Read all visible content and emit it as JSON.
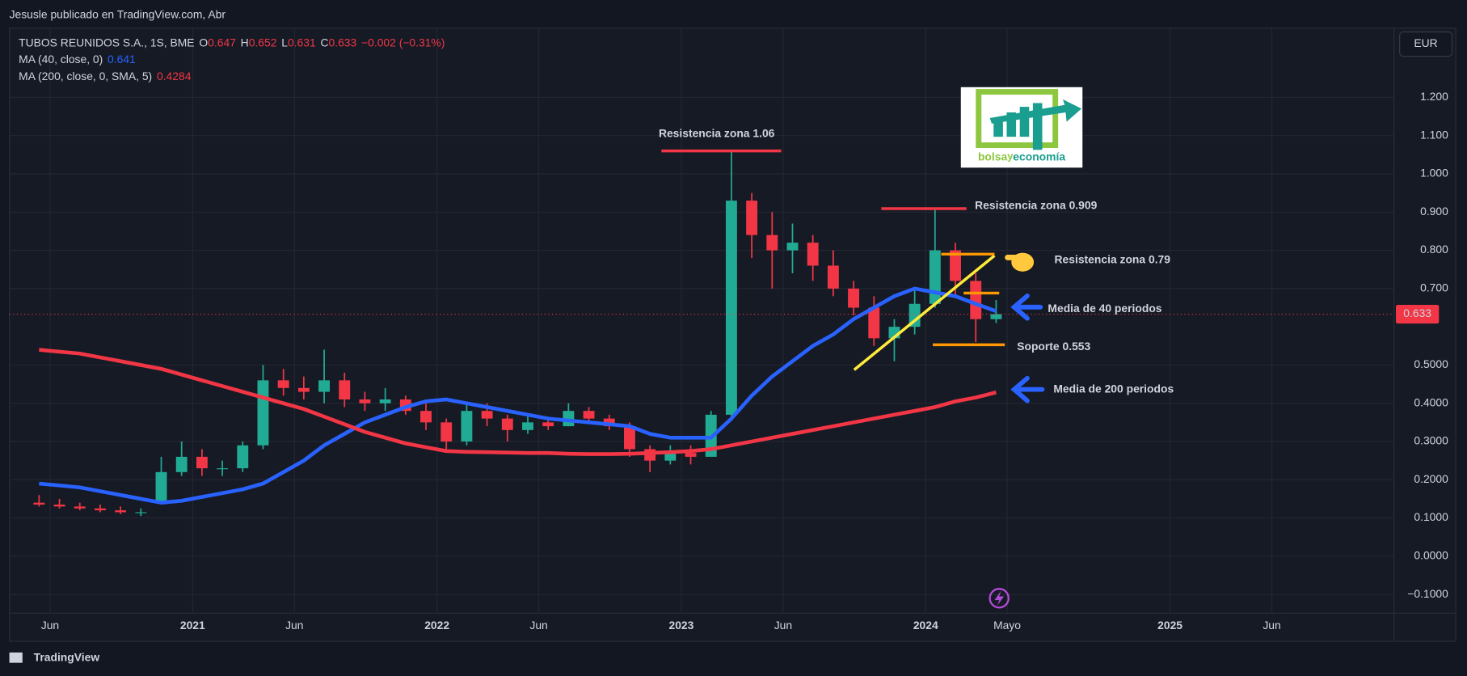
{
  "page": {
    "published": "Jesusle publicado en TradingView.com, Abr",
    "currency": "EUR",
    "brand": "TradingView"
  },
  "header": {
    "symbol": "TUBOS REUNIDOS S.A., 1S, BME",
    "ohlc": [
      {
        "label": "O",
        "value": "0.647"
      },
      {
        "label": "H",
        "value": "0.652"
      },
      {
        "label": "L",
        "value": "0.631"
      },
      {
        "label": "C",
        "value": "0.633"
      }
    ],
    "change": "−0.002 (−0.31%)",
    "indicators": [
      {
        "label": "MA (40, close, 0)",
        "value": "0.641"
      },
      {
        "label": "MA (200, close, 0, SMA, 5)",
        "value": "0.4284"
      }
    ]
  },
  "logo": [
    "bolsa",
    "y",
    "economía"
  ],
  "chart_data": {
    "type": "candlestick",
    "x": [
      "2020-05",
      "2020-06",
      "2020-07",
      "2020-08",
      "2020-09",
      "2020-10",
      "2020-11",
      "2020-12",
      "2021-01",
      "2021-02",
      "2021-03",
      "2021-04",
      "2021-05",
      "2021-06",
      "2021-07",
      "2021-08",
      "2021-09",
      "2021-10",
      "2021-11",
      "2021-12",
      "2022-01",
      "2022-02",
      "2022-03",
      "2022-04",
      "2022-05",
      "2022-06",
      "2022-07",
      "2022-08",
      "2022-09",
      "2022-10",
      "2022-11",
      "2022-12",
      "2023-01",
      "2023-02",
      "2023-03",
      "2023-04",
      "2023-05",
      "2023-06",
      "2023-07",
      "2023-08",
      "2023-09",
      "2023-10",
      "2023-11",
      "2023-12",
      "2024-01",
      "2024-02",
      "2024-03",
      "2024-04"
    ],
    "open": [
      0.14,
      0.135,
      0.13,
      0.125,
      0.12,
      0.115,
      0.14,
      0.22,
      0.26,
      0.23,
      0.23,
      0.29,
      0.46,
      0.44,
      0.43,
      0.46,
      0.41,
      0.4,
      0.41,
      0.38,
      0.35,
      0.3,
      0.38,
      0.36,
      0.33,
      0.35,
      0.34,
      0.38,
      0.36,
      0.34,
      0.28,
      0.25,
      0.27,
      0.26,
      0.37,
      0.93,
      0.84,
      0.8,
      0.82,
      0.76,
      0.7,
      0.65,
      0.57,
      0.6,
      0.66,
      0.8,
      0.72,
      0.62
    ],
    "high": [
      0.16,
      0.15,
      0.14,
      0.135,
      0.13,
      0.125,
      0.26,
      0.3,
      0.28,
      0.25,
      0.3,
      0.5,
      0.49,
      0.47,
      0.54,
      0.48,
      0.43,
      0.44,
      0.42,
      0.4,
      0.36,
      0.4,
      0.4,
      0.37,
      0.37,
      0.36,
      0.4,
      0.39,
      0.37,
      0.35,
      0.29,
      0.29,
      0.29,
      0.38,
      1.06,
      0.95,
      0.9,
      0.87,
      0.84,
      0.8,
      0.72,
      0.68,
      0.62,
      0.7,
      0.909,
      0.82,
      0.74,
      0.67
    ],
    "low": [
      0.13,
      0.125,
      0.12,
      0.115,
      0.11,
      0.105,
      0.14,
      0.21,
      0.21,
      0.21,
      0.22,
      0.28,
      0.42,
      0.41,
      0.4,
      0.39,
      0.38,
      0.38,
      0.37,
      0.33,
      0.28,
      0.29,
      0.34,
      0.3,
      0.32,
      0.33,
      0.34,
      0.35,
      0.33,
      0.26,
      0.22,
      0.24,
      0.24,
      0.26,
      0.36,
      0.78,
      0.7,
      0.74,
      0.72,
      0.68,
      0.63,
      0.55,
      0.51,
      0.58,
      0.65,
      0.68,
      0.56,
      0.61
    ],
    "close": [
      0.135,
      0.13,
      0.125,
      0.12,
      0.115,
      0.115,
      0.22,
      0.26,
      0.23,
      0.23,
      0.29,
      0.46,
      0.44,
      0.43,
      0.46,
      0.41,
      0.4,
      0.41,
      0.38,
      0.35,
      0.3,
      0.38,
      0.36,
      0.33,
      0.35,
      0.34,
      0.38,
      0.36,
      0.34,
      0.28,
      0.25,
      0.27,
      0.26,
      0.37,
      0.93,
      0.84,
      0.8,
      0.82,
      0.76,
      0.7,
      0.65,
      0.57,
      0.6,
      0.66,
      0.8,
      0.72,
      0.62,
      0.633
    ],
    "up_color": "#22ab94",
    "down_color": "#f23645",
    "series": [
      {
        "name": "MA (40, close, 0)",
        "color": "#2962ff",
        "values": [
          0.19,
          0.185,
          0.18,
          0.17,
          0.16,
          0.15,
          0.14,
          0.145,
          0.155,
          0.165,
          0.175,
          0.19,
          0.22,
          0.25,
          0.29,
          0.32,
          0.35,
          0.37,
          0.39,
          0.405,
          0.41,
          0.4,
          0.39,
          0.38,
          0.37,
          0.36,
          0.355,
          0.35,
          0.345,
          0.34,
          0.32,
          0.31,
          0.31,
          0.31,
          0.36,
          0.42,
          0.47,
          0.51,
          0.55,
          0.58,
          0.62,
          0.65,
          0.68,
          0.7,
          0.69,
          0.68,
          0.66,
          0.641
        ]
      },
      {
        "name": "MA (200, close, 0, SMA, 5)",
        "color": "#f23645",
        "values": [
          0.54,
          0.535,
          0.53,
          0.52,
          0.51,
          0.5,
          0.49,
          0.475,
          0.46,
          0.445,
          0.43,
          0.415,
          0.4,
          0.385,
          0.365,
          0.345,
          0.325,
          0.31,
          0.295,
          0.285,
          0.275,
          0.273,
          0.272,
          0.271,
          0.27,
          0.27,
          0.268,
          0.267,
          0.267,
          0.268,
          0.27,
          0.272,
          0.275,
          0.28,
          0.29,
          0.3,
          0.31,
          0.32,
          0.33,
          0.34,
          0.35,
          0.36,
          0.37,
          0.38,
          0.39,
          0.405,
          0.415,
          0.4284
        ]
      }
    ],
    "last_price": {
      "value": 0.633,
      "label": "0.633"
    },
    "xlim": [
      "2020-04",
      "2025-12"
    ],
    "xticks": [
      {
        "value": "2020-06",
        "label": "Jun"
      },
      {
        "value": "2021-01",
        "label": "2021"
      },
      {
        "value": "2021-06",
        "label": "Jun"
      },
      {
        "value": "2022-01",
        "label": "2022"
      },
      {
        "value": "2022-06",
        "label": "Jun"
      },
      {
        "value": "2023-01",
        "label": "2023"
      },
      {
        "value": "2023-06",
        "label": "Jun"
      },
      {
        "value": "2024-01",
        "label": "2024"
      },
      {
        "value": "2024-05",
        "label": "Mayo"
      },
      {
        "value": "2025-01",
        "label": "2025"
      },
      {
        "value": "2025-06",
        "label": "Jun"
      }
    ],
    "ylim": [
      -0.149,
      1.381
    ],
    "yticks": [
      {
        "value": -0.1,
        "label": "−0.1000"
      },
      {
        "value": 0,
        "label": "0.0000"
      },
      {
        "value": 0.1,
        "label": "0.1000"
      },
      {
        "value": 0.2,
        "label": "0.2000"
      },
      {
        "value": 0.3,
        "label": "0.3000"
      },
      {
        "value": 0.4,
        "label": "0.4000"
      },
      {
        "value": 0.5,
        "label": "0.5000"
      },
      {
        "value": 0.7,
        "label": "0.700"
      },
      {
        "value": 0.8,
        "label": "0.800"
      },
      {
        "value": 0.9,
        "label": "0.900"
      },
      {
        "value": 1.0,
        "label": "1.000"
      },
      {
        "value": 1.1,
        "label": "1.100"
      },
      {
        "value": 1.2,
        "label": "1.200"
      }
    ],
    "grid": true,
    "annotations": [
      {
        "text": "Resistencia zona 1.06",
        "level": 1.06,
        "color": "#f23645"
      },
      {
        "text": "Resistencia zona 0.909",
        "level": 0.909,
        "color": "#f23645"
      },
      {
        "text": "Resistencia zona 0.79",
        "level": 0.79,
        "color": "#ff9800"
      },
      {
        "text": "Media de 40 periodos",
        "color": "#ffffff"
      },
      {
        "text": "Soporte 0.553",
        "level": 0.553,
        "color": "#ffeb3b"
      },
      {
        "text": "Media de 200 periodos",
        "color": "#ffffff"
      }
    ]
  }
}
